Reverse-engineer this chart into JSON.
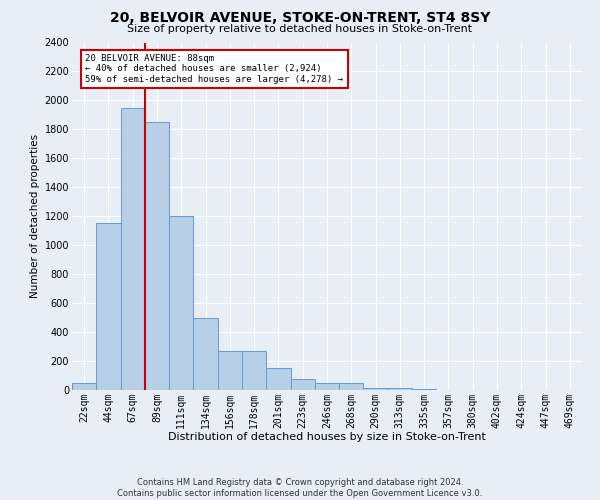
{
  "title": "20, BELVOIR AVENUE, STOKE-ON-TRENT, ST4 8SY",
  "subtitle": "Size of property relative to detached houses in Stoke-on-Trent",
  "xlabel": "Distribution of detached houses by size in Stoke-on-Trent",
  "ylabel": "Number of detached properties",
  "footer_line1": "Contains HM Land Registry data © Crown copyright and database right 2024.",
  "footer_line2": "Contains public sector information licensed under the Open Government Licence v3.0.",
  "bar_labels": [
    "22sqm",
    "44sqm",
    "67sqm",
    "89sqm",
    "111sqm",
    "134sqm",
    "156sqm",
    "178sqm",
    "201sqm",
    "223sqm",
    "246sqm",
    "268sqm",
    "290sqm",
    "313sqm",
    "335sqm",
    "357sqm",
    "380sqm",
    "402sqm",
    "424sqm",
    "447sqm",
    "469sqm"
  ],
  "bar_values": [
    50,
    1150,
    1950,
    1850,
    1200,
    500,
    270,
    270,
    150,
    75,
    50,
    50,
    15,
    15,
    5,
    3,
    2,
    1,
    1,
    1,
    0
  ],
  "bar_color": "#b8cfe8",
  "bar_edge_color": "#6699cc",
  "annotation_text": "20 BELVOIR AVENUE: 88sqm\n← 40% of detached houses are smaller (2,924)\n59% of semi-detached houses are larger (4,278) →",
  "vline_color": "#cc0000",
  "annotation_box_color": "#cc0000",
  "ylim": [
    0,
    2400
  ],
  "yticks": [
    0,
    200,
    400,
    600,
    800,
    1000,
    1200,
    1400,
    1600,
    1800,
    2000,
    2200,
    2400
  ],
  "background_color": "#e8eef5",
  "grid_color": "#ffffff",
  "title_fontsize": 10,
  "subtitle_fontsize": 8,
  "xlabel_fontsize": 8,
  "ylabel_fontsize": 7.5,
  "tick_fontsize": 7,
  "footer_fontsize": 6
}
